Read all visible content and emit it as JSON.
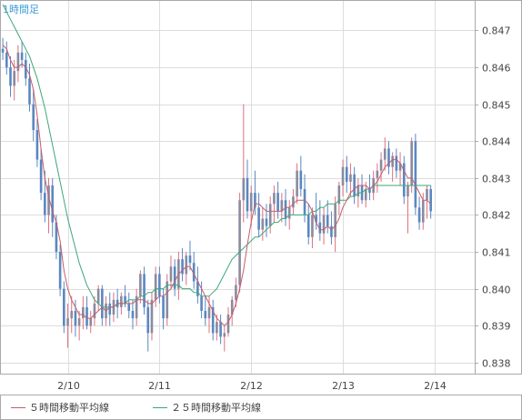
{
  "title": "1時間足",
  "colors": {
    "up": "#8a8aa0",
    "down": "#5b87c0",
    "wick_up": "#e0707a",
    "wick_down": "#5b87c0",
    "ma5": "#c55c6a",
    "ma25": "#3aa877",
    "title": "#3a9bd6",
    "grid": "#dddddd",
    "frame": "#aaaaaa",
    "axis_text": "#444444"
  },
  "legend": [
    {
      "name": "ma5-legend",
      "label": "５時間移動平均線",
      "color_key": "ma5"
    },
    {
      "name": "ma25-legend",
      "label": "２５時間移動平均線",
      "color_key": "ma25"
    }
  ],
  "chart_data": {
    "type": "candlestick",
    "title": "1時間足",
    "x_ticks": [
      {
        "label": "2/10",
        "index": 17
      },
      {
        "label": "2/11",
        "index": 41
      },
      {
        "label": "2/12",
        "index": 65
      },
      {
        "label": "2/13",
        "index": 89
      },
      {
        "label": "2/14",
        "index": 113
      }
    ],
    "y_ticks": [
      0.838,
      0.839,
      0.84,
      0.841,
      0.842,
      0.843,
      0.844,
      0.845,
      0.846,
      0.847
    ],
    "y_tick_labels": [
      "0.838",
      "0.839",
      "0.840",
      "0.841",
      "0.842",
      "0.843",
      "0.844",
      "0.845",
      "0.846",
      "0.847"
    ],
    "ylim": [
      0.8377,
      0.8478
    ],
    "x_count": 124,
    "grid": true,
    "series": [
      {
        "name": "５時間移動平均線",
        "type": "line"
      },
      {
        "name": "２５時間移動平均線",
        "type": "line"
      }
    ],
    "candles": [
      [
        0.8465,
        0.8468,
        0.8462,
        0.8464
      ],
      [
        0.8464,
        0.8467,
        0.8458,
        0.846
      ],
      [
        0.846,
        0.8463,
        0.8452,
        0.8455
      ],
      [
        0.8455,
        0.8462,
        0.8451,
        0.8459
      ],
      [
        0.8459,
        0.8466,
        0.8456,
        0.8464
      ],
      [
        0.8464,
        0.8467,
        0.846,
        0.8462
      ],
      [
        0.8462,
        0.8464,
        0.8455,
        0.8457
      ],
      [
        0.8457,
        0.8461,
        0.8448,
        0.845
      ],
      [
        0.845,
        0.8454,
        0.844,
        0.8443
      ],
      [
        0.8443,
        0.8446,
        0.8433,
        0.8435
      ],
      [
        0.8435,
        0.8438,
        0.8424,
        0.8426
      ],
      [
        0.8426,
        0.8432,
        0.8418,
        0.842
      ],
      [
        0.842,
        0.843,
        0.8415,
        0.8428
      ],
      [
        0.8428,
        0.843,
        0.8414,
        0.8418
      ],
      [
        0.8418,
        0.842,
        0.8408,
        0.841
      ],
      [
        0.841,
        0.8412,
        0.8398,
        0.84
      ],
      [
        0.84,
        0.8402,
        0.8388,
        0.839
      ],
      [
        0.839,
        0.8396,
        0.8384,
        0.8392
      ],
      [
        0.8392,
        0.8398,
        0.8388,
        0.8394
      ],
      [
        0.8394,
        0.8397,
        0.8387,
        0.839
      ],
      [
        0.839,
        0.8394,
        0.8386,
        0.8392
      ],
      [
        0.8392,
        0.8398,
        0.8389,
        0.8395
      ],
      [
        0.8395,
        0.8398,
        0.8389,
        0.839
      ],
      [
        0.839,
        0.8394,
        0.8388,
        0.8392
      ],
      [
        0.8392,
        0.8398,
        0.839,
        0.8396
      ],
      [
        0.8396,
        0.8401,
        0.8394,
        0.84
      ],
      [
        0.84,
        0.8401,
        0.839,
        0.8392
      ],
      [
        0.8392,
        0.8398,
        0.839,
        0.8396
      ],
      [
        0.8396,
        0.8399,
        0.839,
        0.8393
      ],
      [
        0.8393,
        0.8399,
        0.8391,
        0.8397
      ],
      [
        0.8397,
        0.84,
        0.8392,
        0.8395
      ],
      [
        0.8395,
        0.8399,
        0.8393,
        0.8398
      ],
      [
        0.8398,
        0.8401,
        0.8395,
        0.8396
      ],
      [
        0.8396,
        0.8399,
        0.8392,
        0.8394
      ],
      [
        0.8394,
        0.8397,
        0.8389,
        0.8392
      ],
      [
        0.8392,
        0.84,
        0.839,
        0.8398
      ],
      [
        0.8398,
        0.8405,
        0.8396,
        0.8404
      ],
      [
        0.8404,
        0.8406,
        0.8393,
        0.8395
      ],
      [
        0.8395,
        0.8397,
        0.8383,
        0.8388
      ],
      [
        0.8388,
        0.8399,
        0.8386,
        0.8397
      ],
      [
        0.8397,
        0.8406,
        0.8395,
        0.8404
      ],
      [
        0.8404,
        0.8406,
        0.8396,
        0.8398
      ],
      [
        0.8398,
        0.84,
        0.8389,
        0.8392
      ],
      [
        0.8392,
        0.8404,
        0.839,
        0.8402
      ],
      [
        0.8402,
        0.8409,
        0.84,
        0.8406
      ],
      [
        0.8406,
        0.8408,
        0.8398,
        0.84
      ],
      [
        0.84,
        0.841,
        0.8397,
        0.8408
      ],
      [
        0.8408,
        0.8411,
        0.8402,
        0.8404
      ],
      [
        0.8404,
        0.841,
        0.8401,
        0.8409
      ],
      [
        0.8409,
        0.8413,
        0.8405,
        0.8407
      ],
      [
        0.8407,
        0.841,
        0.84,
        0.8402
      ],
      [
        0.8402,
        0.8406,
        0.8396,
        0.8398
      ],
      [
        0.8398,
        0.8402,
        0.8392,
        0.8394
      ],
      [
        0.8394,
        0.8398,
        0.839,
        0.8392
      ],
      [
        0.8392,
        0.8398,
        0.8388,
        0.8395
      ],
      [
        0.8395,
        0.8397,
        0.8386,
        0.8388
      ],
      [
        0.8388,
        0.8393,
        0.8386,
        0.8391
      ],
      [
        0.8391,
        0.8393,
        0.8385,
        0.8387
      ],
      [
        0.8387,
        0.839,
        0.8383,
        0.8388
      ],
      [
        0.8388,
        0.8395,
        0.8387,
        0.8393
      ],
      [
        0.8393,
        0.8398,
        0.839,
        0.8397
      ],
      [
        0.8397,
        0.8403,
        0.8395,
        0.8401
      ],
      [
        0.8401,
        0.8426,
        0.8399,
        0.8424
      ],
      [
        0.8424,
        0.845,
        0.8418,
        0.843
      ],
      [
        0.843,
        0.8435,
        0.8419,
        0.8421
      ],
      [
        0.8421,
        0.8428,
        0.8417,
        0.8426
      ],
      [
        0.8426,
        0.8432,
        0.842,
        0.8422
      ],
      [
        0.8422,
        0.8426,
        0.8414,
        0.8416
      ],
      [
        0.8416,
        0.8422,
        0.8413,
        0.8419
      ],
      [
        0.8419,
        0.8423,
        0.8414,
        0.8417
      ],
      [
        0.8417,
        0.8425,
        0.8415,
        0.8423
      ],
      [
        0.8423,
        0.8428,
        0.8418,
        0.8426
      ],
      [
        0.8426,
        0.8429,
        0.8419,
        0.8421
      ],
      [
        0.8421,
        0.8426,
        0.8418,
        0.8424
      ],
      [
        0.8424,
        0.8427,
        0.8417,
        0.8419
      ],
      [
        0.8419,
        0.8424,
        0.8416,
        0.8422
      ],
      [
        0.8422,
        0.8427,
        0.842,
        0.8425
      ],
      [
        0.8425,
        0.8434,
        0.8423,
        0.8432
      ],
      [
        0.8432,
        0.8436,
        0.8425,
        0.8427
      ],
      [
        0.8427,
        0.8431,
        0.8418,
        0.842
      ],
      [
        0.842,
        0.8423,
        0.8412,
        0.8414
      ],
      [
        0.8414,
        0.8422,
        0.8411,
        0.842
      ],
      [
        0.842,
        0.8426,
        0.8416,
        0.8418
      ],
      [
        0.8418,
        0.8424,
        0.8413,
        0.8415
      ],
      [
        0.8415,
        0.8422,
        0.8412,
        0.842
      ],
      [
        0.842,
        0.8424,
        0.8415,
        0.8417
      ],
      [
        0.8417,
        0.8421,
        0.8412,
        0.8414
      ],
      [
        0.8414,
        0.8425,
        0.841,
        0.8423
      ],
      [
        0.8423,
        0.8429,
        0.842,
        0.8428
      ],
      [
        0.8428,
        0.8435,
        0.8425,
        0.8433
      ],
      [
        0.8433,
        0.8436,
        0.8426,
        0.8429
      ],
      [
        0.8429,
        0.8434,
        0.8425,
        0.8431
      ],
      [
        0.8431,
        0.8433,
        0.8423,
        0.8425
      ],
      [
        0.8425,
        0.843,
        0.8422,
        0.8428
      ],
      [
        0.8428,
        0.8431,
        0.8423,
        0.8424
      ],
      [
        0.8424,
        0.8429,
        0.8422,
        0.8427
      ],
      [
        0.8427,
        0.8431,
        0.8424,
        0.8426
      ],
      [
        0.8426,
        0.8432,
        0.8424,
        0.843
      ],
      [
        0.843,
        0.8434,
        0.8426,
        0.8432
      ],
      [
        0.8432,
        0.8437,
        0.8429,
        0.8435
      ],
      [
        0.8435,
        0.8441,
        0.8432,
        0.8438
      ],
      [
        0.8438,
        0.844,
        0.8431,
        0.8433
      ],
      [
        0.8433,
        0.8437,
        0.8429,
        0.8436
      ],
      [
        0.8436,
        0.8438,
        0.843,
        0.8432
      ],
      [
        0.8432,
        0.8437,
        0.8428,
        0.8434
      ],
      [
        0.8434,
        0.8436,
        0.8423,
        0.8425
      ],
      [
        0.8425,
        0.8429,
        0.8415,
        0.8428
      ],
      [
        0.8428,
        0.8441,
        0.8426,
        0.844
      ],
      [
        0.844,
        0.8442,
        0.842,
        0.8422
      ],
      [
        0.8422,
        0.8425,
        0.8416,
        0.8418
      ],
      [
        0.8418,
        0.8426,
        0.8416,
        0.8424
      ],
      [
        0.8424,
        0.8428,
        0.8419,
        0.8427
      ],
      [
        0.8427,
        0.8428,
        0.8419,
        0.8421
      ]
    ],
    "ma5": [
      0.8466,
      0.8465,
      0.8462,
      0.846,
      0.846,
      0.8461,
      0.846,
      0.8458,
      0.8454,
      0.8447,
      0.8438,
      0.843,
      0.8425,
      0.8421,
      0.8418,
      0.8413,
      0.8405,
      0.84,
      0.8397,
      0.8395,
      0.8393,
      0.8393,
      0.8392,
      0.8392,
      0.8393,
      0.8394,
      0.8395,
      0.8394,
      0.8395,
      0.8395,
      0.8396,
      0.8396,
      0.8396,
      0.8396,
      0.8396,
      0.8397,
      0.8397,
      0.8397,
      0.8396,
      0.8396,
      0.8397,
      0.8398,
      0.8398,
      0.8399,
      0.84,
      0.8402,
      0.8404,
      0.8405,
      0.8406,
      0.8406,
      0.8404,
      0.8402,
      0.84,
      0.8398,
      0.8396,
      0.8394,
      0.8392,
      0.8391,
      0.839,
      0.8391,
      0.8393,
      0.8396,
      0.84,
      0.8405,
      0.8412,
      0.8418,
      0.8423,
      0.8423,
      0.8422,
      0.8421,
      0.8421,
      0.8421,
      0.8421,
      0.8421,
      0.8422,
      0.8422,
      0.8423,
      0.8424,
      0.8424,
      0.8424,
      0.8423,
      0.8421,
      0.8418,
      0.8416,
      0.8416,
      0.8417,
      0.8416,
      0.8417,
      0.8419,
      0.8422,
      0.8424,
      0.8426,
      0.8427,
      0.8428,
      0.8428,
      0.8428,
      0.8427,
      0.8428,
      0.8429,
      0.8431,
      0.8433,
      0.8434,
      0.8435,
      0.8435,
      0.8434,
      0.8432,
      0.843,
      0.843,
      0.8428,
      0.8426,
      0.8424,
      0.8424,
      0.8423
    ],
    "ma25": [
      0.8477,
      0.8475,
      0.8473,
      0.8471,
      0.8469,
      0.8467,
      0.8465,
      0.8463,
      0.846,
      0.8457,
      0.8453,
      0.8449,
      0.8444,
      0.8439,
      0.8434,
      0.8429,
      0.8424,
      0.8419,
      0.8415,
      0.8411,
      0.8407,
      0.8404,
      0.8401,
      0.8399,
      0.8397,
      0.8396,
      0.8395,
      0.8395,
      0.8395,
      0.8395,
      0.8396,
      0.8396,
      0.8396,
      0.8397,
      0.8397,
      0.8397,
      0.8398,
      0.8398,
      0.8399,
      0.8399,
      0.84,
      0.84,
      0.84,
      0.8401,
      0.8401,
      0.8401,
      0.8401,
      0.84,
      0.84,
      0.84,
      0.8399,
      0.8399,
      0.8398,
      0.8398,
      0.8398,
      0.8399,
      0.84,
      0.8402,
      0.8404,
      0.8406,
      0.8408,
      0.8409,
      0.841,
      0.8411,
      0.8412,
      0.8413,
      0.8414,
      0.8414,
      0.8415,
      0.8416,
      0.8417,
      0.8418,
      0.8418,
      0.8419,
      0.8419,
      0.842,
      0.842,
      0.842,
      0.842,
      0.842,
      0.842,
      0.8421,
      0.8421,
      0.8422,
      0.8422,
      0.8423,
      0.8423,
      0.8423,
      0.8424,
      0.8424,
      0.8424,
      0.8425,
      0.8425,
      0.8426,
      0.8426,
      0.8427,
      0.8427,
      0.8428,
      0.8428,
      0.8428,
      0.8428,
      0.8428,
      0.8428,
      0.8428,
      0.8428,
      0.8428,
      0.8428,
      0.8428,
      0.8428,
      0.8428,
      0.8428,
      0.8428,
      0.8428
    ]
  }
}
